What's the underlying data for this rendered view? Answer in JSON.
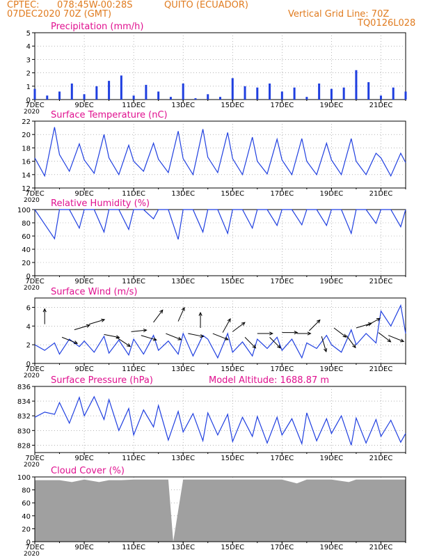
{
  "header": {
    "source": "CPTEC:",
    "coords": "078:45W-00:28S",
    "location": "QUITO (ECUADOR)",
    "date": "07DEC2020 70Z (GMT)",
    "grid_note": "Vertical Grid Line: 70Z",
    "code": "TQ0126L028"
  },
  "colors": {
    "header": "#e07b1f",
    "title": "#e0108f",
    "series": "#1f3fe0",
    "wind_arrow": "#000000",
    "cloud": "#a0a0a0",
    "grid": "#888888"
  },
  "chart_data": [
    {
      "type": "bar",
      "title": "Precipitation (mm/h)",
      "ylim": [
        0,
        5
      ],
      "yticks": [
        0,
        1,
        2,
        3,
        4,
        5
      ],
      "xlim": [
        7,
        22
      ],
      "x_tick_positions": [
        7,
        9,
        11,
        13,
        15,
        17,
        19,
        21
      ],
      "x_ticks": [
        "7DEC",
        "9DEC",
        "11DEC",
        "13DEC",
        "15DEC",
        "17DEC",
        "19DEC",
        "21DEC"
      ],
      "x_tick_extra": "2020",
      "x": [
        7.0,
        7.5,
        8.0,
        8.5,
        9.0,
        9.5,
        10.0,
        10.5,
        11.0,
        11.5,
        12.0,
        12.5,
        13.0,
        13.5,
        14.0,
        14.5,
        15.0,
        15.5,
        16.0,
        16.5,
        17.0,
        17.5,
        18.0,
        18.5,
        19.0,
        19.5,
        20.0,
        20.5,
        21.0,
        21.5,
        22.0
      ],
      "values": [
        0.8,
        0.3,
        0.6,
        1.2,
        0.4,
        1.0,
        1.4,
        1.8,
        0.3,
        1.1,
        0.6,
        0.2,
        1.2,
        0.1,
        0.4,
        0.2,
        1.6,
        1.0,
        0.9,
        1.2,
        0.6,
        0.9,
        0.2,
        1.2,
        0.8,
        0.9,
        2.2,
        1.3,
        0.3,
        0.9,
        0.6
      ]
    },
    {
      "type": "line",
      "title": "Surface Temperature (nC)",
      "ylim": [
        12,
        22
      ],
      "yticks": [
        12,
        14,
        16,
        18,
        20,
        22
      ],
      "xlim": [
        7,
        22
      ],
      "x_tick_positions": [
        7,
        9,
        11,
        13,
        15,
        17,
        19,
        21
      ],
      "x_ticks": [
        "7DEC",
        "9DEC",
        "11DEC",
        "13DEC",
        "15DEC",
        "17DEC",
        "19DEC",
        "21DEC"
      ],
      "x_tick_extra": "2020",
      "x": [
        7.0,
        7.4,
        7.8,
        8.0,
        8.4,
        8.8,
        9.0,
        9.4,
        9.8,
        10.0,
        10.4,
        10.8,
        11.0,
        11.4,
        11.8,
        12.0,
        12.4,
        12.8,
        13.0,
        13.4,
        13.8,
        14.0,
        14.4,
        14.8,
        15.0,
        15.4,
        15.8,
        16.0,
        16.4,
        16.8,
        17.0,
        17.4,
        17.8,
        18.0,
        18.4,
        18.8,
        19.0,
        19.4,
        19.8,
        20.0,
        20.4,
        20.8,
        21.0,
        21.4,
        21.8,
        22.0
      ],
      "values": [
        16.5,
        13.8,
        21.1,
        17.0,
        14.5,
        18.6,
        16.2,
        14.2,
        20.0,
        16.5,
        14.0,
        18.4,
        16.0,
        14.5,
        18.7,
        16.3,
        14.3,
        20.5,
        16.4,
        14.0,
        20.8,
        16.6,
        14.3,
        20.3,
        16.4,
        14.0,
        19.6,
        16.0,
        14.1,
        19.3,
        16.2,
        14.0,
        19.4,
        16.0,
        14.0,
        18.7,
        16.2,
        14.0,
        19.4,
        16.0,
        14.0,
        17.2,
        16.5,
        13.8,
        17.2,
        15.8
      ]
    },
    {
      "type": "line",
      "title": "Relative Humidity (%)",
      "ylim": [
        0,
        100
      ],
      "yticks": [
        0,
        20,
        40,
        60,
        80,
        100
      ],
      "xlim": [
        7,
        22
      ],
      "x_tick_positions": [
        7,
        9,
        11,
        13,
        15,
        17,
        19,
        21
      ],
      "x_ticks": [
        "7DEC",
        "9DEC",
        "11DEC",
        "13DEC",
        "15DEC",
        "17DEC",
        "19DEC",
        "21DEC"
      ],
      "x_tick_extra": "2020",
      "x": [
        7.0,
        7.4,
        7.8,
        8.0,
        8.4,
        8.8,
        9.0,
        9.4,
        9.8,
        10.0,
        10.4,
        10.8,
        11.0,
        11.4,
        11.8,
        12.0,
        12.4,
        12.8,
        13.0,
        13.4,
        13.8,
        14.0,
        14.4,
        14.8,
        15.0,
        15.4,
        15.8,
        16.0,
        16.4,
        16.8,
        17.0,
        17.4,
        17.8,
        18.0,
        18.4,
        18.8,
        19.0,
        19.4,
        19.8,
        20.0,
        20.4,
        20.8,
        21.0,
        21.4,
        21.8,
        22.0
      ],
      "values": [
        100,
        78,
        56,
        100,
        100,
        72,
        100,
        100,
        66,
        100,
        100,
        70,
        100,
        100,
        86,
        100,
        100,
        55,
        100,
        100,
        66,
        100,
        100,
        64,
        100,
        100,
        72,
        100,
        100,
        76,
        100,
        100,
        77,
        100,
        100,
        76,
        100,
        100,
        64,
        100,
        100,
        79,
        100,
        100,
        74,
        100
      ]
    },
    {
      "type": "line",
      "title": "Surface Wind (m/s)",
      "ylim": [
        0,
        7
      ],
      "yticks": [
        0,
        2,
        4,
        6
      ],
      "xlim": [
        7,
        22
      ],
      "x_tick_positions": [
        7,
        9,
        11,
        13,
        15,
        17,
        19,
        21
      ],
      "x_ticks": [
        "7DEC",
        "9DEC",
        "11DEC",
        "13DEC",
        "15DEC",
        "17DEC",
        "19DEC",
        "21DEC"
      ],
      "x_tick_extra": "2020",
      "x": [
        7.0,
        7.4,
        7.8,
        8.0,
        8.4,
        8.8,
        9.0,
        9.4,
        9.8,
        10.0,
        10.4,
        10.8,
        11.0,
        11.4,
        11.8,
        12.0,
        12.4,
        12.8,
        13.0,
        13.4,
        13.8,
        14.0,
        14.4,
        14.8,
        15.0,
        15.4,
        15.8,
        16.0,
        16.4,
        16.8,
        17.0,
        17.4,
        17.8,
        18.0,
        18.4,
        18.8,
        19.0,
        19.4,
        19.8,
        20.0,
        20.4,
        20.8,
        21.0,
        21.4,
        21.8,
        22.0
      ],
      "values": [
        2.0,
        1.4,
        2.2,
        1.0,
        2.6,
        1.8,
        2.4,
        1.2,
        2.9,
        1.1,
        2.5,
        0.9,
        2.6,
        1.0,
        3.0,
        1.4,
        2.4,
        1.0,
        3.2,
        0.8,
        3.0,
        2.6,
        0.6,
        3.2,
        1.2,
        2.3,
        0.8,
        2.6,
        1.6,
        2.8,
        1.4,
        2.6,
        0.6,
        2.2,
        1.6,
        3.0,
        2.0,
        1.2,
        3.6,
        2.0,
        3.2,
        2.2,
        5.6,
        4.0,
        6.2,
        3.2
      ],
      "arrows": [
        {
          "day": 7.4,
          "speed": 4.2,
          "u": 0.0,
          "v": 1.0
        },
        {
          "day": 8.1,
          "speed": 2.8,
          "u": 1.0,
          "v": -0.4
        },
        {
          "day": 8.6,
          "speed": 3.6,
          "u": 1.0,
          "v": 0.3
        },
        {
          "day": 9.2,
          "speed": 4.2,
          "u": 1.0,
          "v": 0.3
        },
        {
          "day": 9.8,
          "speed": 3.1,
          "u": 1.0,
          "v": -0.2
        },
        {
          "day": 10.3,
          "speed": 2.8,
          "u": 0.9,
          "v": -0.6
        },
        {
          "day": 10.9,
          "speed": 3.4,
          "u": 1.0,
          "v": 0.1
        },
        {
          "day": 11.3,
          "speed": 3.0,
          "u": 1.0,
          "v": -0.3
        },
        {
          "day": 11.8,
          "speed": 4.4,
          "u": 0.6,
          "v": 0.8
        },
        {
          "day": 12.3,
          "speed": 3.2,
          "u": 1.0,
          "v": -0.4
        },
        {
          "day": 12.8,
          "speed": 4.5,
          "u": 0.4,
          "v": 0.9
        },
        {
          "day": 13.2,
          "speed": 3.2,
          "u": 1.0,
          "v": -0.2
        },
        {
          "day": 13.7,
          "speed": 3.8,
          "u": 0.0,
          "v": 1.0
        },
        {
          "day": 14.2,
          "speed": 3.2,
          "u": 1.0,
          "v": -0.4
        },
        {
          "day": 14.6,
          "speed": 3.3,
          "u": 0.5,
          "v": 0.9
        },
        {
          "day": 15.0,
          "speed": 3.4,
          "u": 0.8,
          "v": 0.6
        },
        {
          "day": 15.5,
          "speed": 2.8,
          "u": 0.7,
          "v": -0.7
        },
        {
          "day": 16.0,
          "speed": 3.2,
          "u": 1.0,
          "v": 0.0
        },
        {
          "day": 16.5,
          "speed": 2.8,
          "u": 0.7,
          "v": -0.7
        },
        {
          "day": 17.0,
          "speed": 3.3,
          "u": 1.0,
          "v": 0.0
        },
        {
          "day": 17.6,
          "speed": 3.2,
          "u": 0.9,
          "v": 0.0
        },
        {
          "day": 18.1,
          "speed": 3.5,
          "u": 0.7,
          "v": 0.7
        },
        {
          "day": 18.6,
          "speed": 2.9,
          "u": 0.3,
          "v": -1.0
        },
        {
          "day": 19.1,
          "speed": 3.8,
          "u": 0.8,
          "v": -0.6
        },
        {
          "day": 19.6,
          "speed": 3.0,
          "u": 0.6,
          "v": -0.8
        },
        {
          "day": 20.0,
          "speed": 3.8,
          "u": 1.0,
          "v": 0.3
        },
        {
          "day": 20.4,
          "speed": 4.0,
          "u": 0.9,
          "v": 0.5
        },
        {
          "day": 20.9,
          "speed": 3.3,
          "u": 0.8,
          "v": -0.6
        },
        {
          "day": 21.3,
          "speed": 3.0,
          "u": 1.0,
          "v": -0.4
        }
      ]
    },
    {
      "type": "line",
      "title": "Surface Pressure (hPa)",
      "annotation": "Model Altitude: 1688.87 m",
      "ylim": [
        827,
        836
      ],
      "yticks": [
        828,
        830,
        832,
        834,
        836
      ],
      "xlim": [
        7,
        22
      ],
      "x_tick_positions": [
        7,
        9,
        11,
        13,
        15,
        17,
        19,
        21
      ],
      "x_ticks": [
        "7DEC",
        "9DEC",
        "11DEC",
        "13DEC",
        "15DEC",
        "17DEC",
        "19DEC",
        "21DEC"
      ],
      "x_tick_extra": "2020",
      "x": [
        7.0,
        7.4,
        7.8,
        8.0,
        8.4,
        8.8,
        9.0,
        9.4,
        9.8,
        10.0,
        10.4,
        10.8,
        11.0,
        11.4,
        11.8,
        12.0,
        12.4,
        12.8,
        13.0,
        13.4,
        13.8,
        14.0,
        14.4,
        14.8,
        15.0,
        15.4,
        15.8,
        16.0,
        16.4,
        16.8,
        17.0,
        17.4,
        17.8,
        18.0,
        18.4,
        18.8,
        19.0,
        19.4,
        19.8,
        20.0,
        20.4,
        20.8,
        21.0,
        21.4,
        21.8,
        22.0
      ],
      "values": [
        831.8,
        832.5,
        832.2,
        833.8,
        831.0,
        834.5,
        832.0,
        834.6,
        831.5,
        834.2,
        830.0,
        833.0,
        829.4,
        832.8,
        830.5,
        833.4,
        828.7,
        832.6,
        829.8,
        832.3,
        828.6,
        832.4,
        829.4,
        832.2,
        828.5,
        831.8,
        829.2,
        831.9,
        828.3,
        831.8,
        829.4,
        831.6,
        828.2,
        832.4,
        828.6,
        831.6,
        829.6,
        832.0,
        828.0,
        831.7,
        828.3,
        831.5,
        829.2,
        831.4,
        828.4,
        829.6
      ]
    },
    {
      "type": "area",
      "title": "Cloud Cover (%)",
      "ylim": [
        0,
        100
      ],
      "yticks": [
        0,
        20,
        40,
        60,
        80,
        100
      ],
      "xlim": [
        7,
        22
      ],
      "x_tick_positions": [
        7,
        9,
        11,
        13,
        15,
        17,
        19,
        21
      ],
      "x_ticks": [
        "7DEC",
        "9DEC",
        "11DEC",
        "13DEC",
        "15DEC",
        "17DEC",
        "19DEC",
        "21DEC"
      ],
      "x_tick_extra": "2020",
      "x": [
        7.0,
        8.0,
        8.5,
        9.0,
        9.6,
        10.0,
        10.5,
        11.0,
        11.9,
        12.4,
        12.6,
        13.0,
        14.0,
        15.0,
        16.0,
        17.0,
        17.6,
        18.0,
        19.0,
        19.7,
        20.0,
        21.0,
        22.0
      ],
      "values": [
        95,
        95,
        92,
        96,
        92,
        95,
        95,
        96,
        96,
        96,
        0,
        96,
        96,
        96,
        96,
        96,
        90,
        96,
        96,
        92,
        96,
        96,
        96
      ]
    }
  ]
}
